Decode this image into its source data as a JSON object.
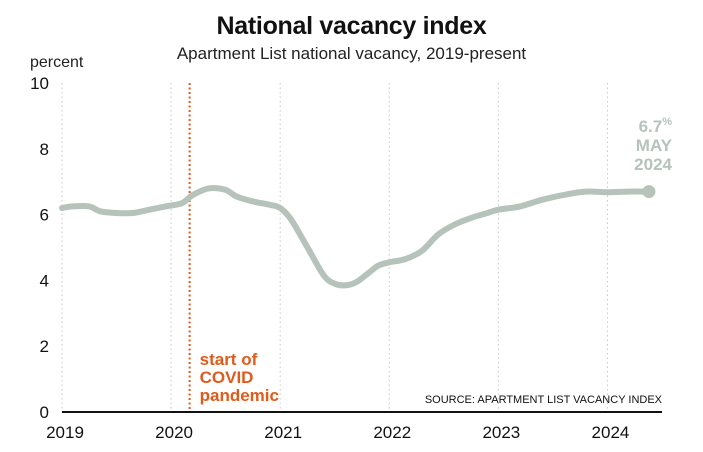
{
  "chart_data": {
    "type": "line",
    "title": "National vacancy index",
    "subtitle": "Apartment List national vacancy, 2019-present",
    "ylabel": "percent",
    "xlabel": "",
    "ylim": [
      0,
      10
    ],
    "yticks": [
      0,
      2,
      4,
      6,
      8,
      10
    ],
    "xlim": [
      2019,
      2024.5
    ],
    "xticks": [
      2019,
      2020,
      2021,
      2022,
      2023,
      2024
    ],
    "xtick_labels": [
      "2019",
      "2020",
      "2021",
      "2022",
      "2023",
      "2024"
    ],
    "grid": "vertical dotted",
    "series": [
      {
        "name": "",
        "x": [
          2019.0,
          2019.1,
          2019.25,
          2019.35,
          2019.5,
          2019.65,
          2019.8,
          2019.95,
          2020.1,
          2020.2,
          2020.35,
          2020.5,
          2020.6,
          2020.75,
          2020.9,
          2021.0,
          2021.1,
          2021.25,
          2021.4,
          2021.5,
          2021.6,
          2021.7,
          2021.8,
          2021.9,
          2022.0,
          2022.15,
          2022.3,
          2022.45,
          2022.6,
          2022.75,
          2022.9,
          2023.0,
          2023.2,
          2023.4,
          2023.6,
          2023.8,
          2024.0,
          2024.2,
          2024.38
        ],
        "values": [
          6.2,
          6.25,
          6.25,
          6.1,
          6.05,
          6.05,
          6.15,
          6.25,
          6.35,
          6.6,
          6.8,
          6.75,
          6.55,
          6.4,
          6.3,
          6.2,
          5.85,
          5.0,
          4.15,
          3.9,
          3.85,
          3.95,
          4.2,
          4.45,
          4.55,
          4.65,
          4.9,
          5.4,
          5.7,
          5.9,
          6.05,
          6.15,
          6.25,
          6.45,
          6.6,
          6.7,
          6.68,
          6.7,
          6.7
        ]
      }
    ],
    "annotations": {
      "covid_label_lines": [
        "start of",
        "COVID",
        "pandemic"
      ],
      "covid_x": 2020.17,
      "end_label_lines": [
        "6.7%",
        "MAY",
        "2024"
      ],
      "source": "SOURCE: APARTMENT LIST VACANCY INDEX"
    },
    "colors": {
      "line": "#b5c3bb",
      "covid": "#e05a1c",
      "end_label": "#b5c3bb",
      "grid": "#c8c8c8",
      "axis": "#111111"
    }
  }
}
